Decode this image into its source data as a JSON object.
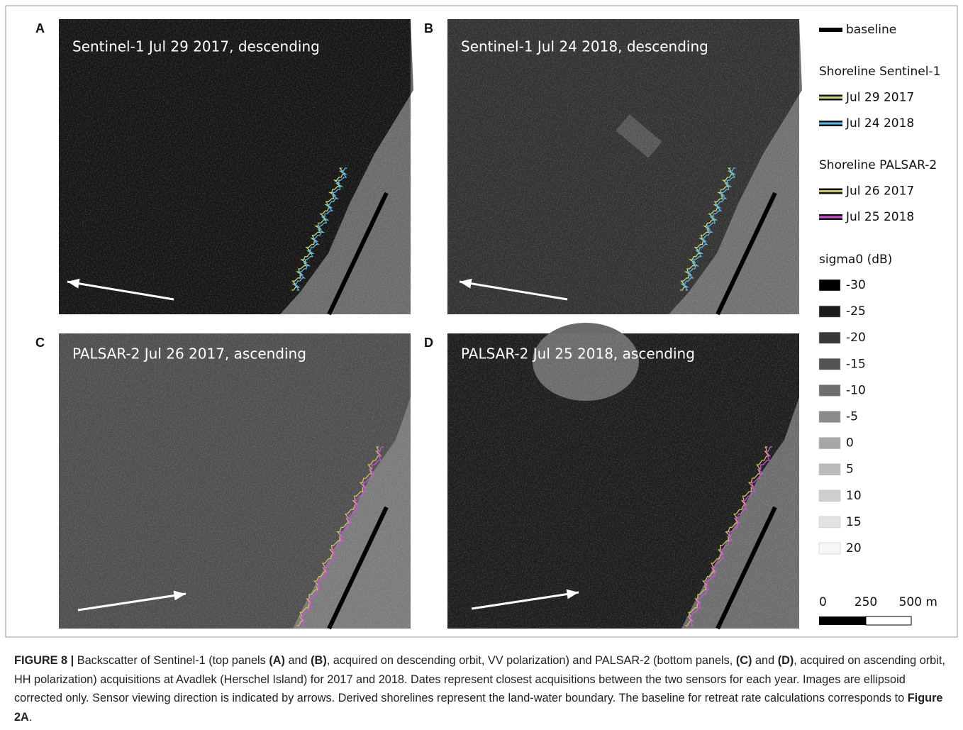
{
  "panels": [
    {
      "letter": "A",
      "title": "Sentinel-1 Jul 29 2017, descending"
    },
    {
      "letter": "B",
      "title": "Sentinel-1 Jul 24 2018, descending"
    },
    {
      "letter": "C",
      "title": "PALSAR-2 Jul 26 2017, ascending"
    },
    {
      "letter": "D",
      "title": "PALSAR-2 Jul 25 2018, ascending"
    }
  ],
  "legend": {
    "baseline": "baseline",
    "groups": [
      {
        "title": "Shoreline Sentinel-1",
        "items": [
          {
            "label": "Jul 29 2017",
            "color": "#c9d67c"
          },
          {
            "label": "Jul 24 2018",
            "color": "#5cb6e4"
          }
        ]
      },
      {
        "title": "Shoreline PALSAR-2",
        "items": [
          {
            "label": "Jul 26 2017",
            "color": "#cbc462"
          },
          {
            "label": "Jul 25 2018",
            "color": "#cf52d4"
          }
        ]
      }
    ],
    "sigma_title": "sigma0 (dB)",
    "sigma": [
      {
        "label": "-30",
        "color": "#000000"
      },
      {
        "label": "-25",
        "color": "#1c1c1c"
      },
      {
        "label": "-20",
        "color": "#383838"
      },
      {
        "label": "-15",
        "color": "#545454"
      },
      {
        "label": "-10",
        "color": "#6f6f6f"
      },
      {
        "label": "-5",
        "color": "#8b8b8b"
      },
      {
        "label": "0",
        "color": "#a7a7a7"
      },
      {
        "label": "5",
        "color": "#bbbbbb"
      },
      {
        "label": "10",
        "color": "#cfcfcf"
      },
      {
        "label": "15",
        "color": "#e3e3e3"
      },
      {
        "label": "20",
        "color": "#f7f7f7"
      }
    ]
  },
  "scale": [
    "0",
    "250",
    "500 m"
  ],
  "caption": [
    {
      "text": "FIGURE 8 | ",
      "bold": true
    },
    {
      "text": "Backscatter of Sentinel-1 (top panels ",
      "bold": false
    },
    {
      "text": "(A)",
      "bold": true
    },
    {
      "text": " and ",
      "bold": false
    },
    {
      "text": "(B)",
      "bold": true
    },
    {
      "text": ", acquired on descending orbit, VV polarization) and PALSAR-2 (bottom panels, ",
      "bold": false
    },
    {
      "text": "(C)",
      "bold": true
    },
    {
      "text": " and ",
      "bold": false
    },
    {
      "text": "(D)",
      "bold": true
    },
    {
      "text": ", acquired on ascending orbit, HH polarization) acquisitions at Avadlek (Herschel Island) for 2017 and 2018. Dates represent closest acquisitions between the two sensors for each year. Images are ellipsoid corrected only. Sensor viewing direction is indicated by arrows. Derived shorelines represent the land-water boundary. The baseline for retreat rate calculations corresponds to ",
      "bold": false
    },
    {
      "text": "Figure 2A",
      "bold": true
    },
    {
      "text": ".",
      "bold": false
    }
  ]
}
